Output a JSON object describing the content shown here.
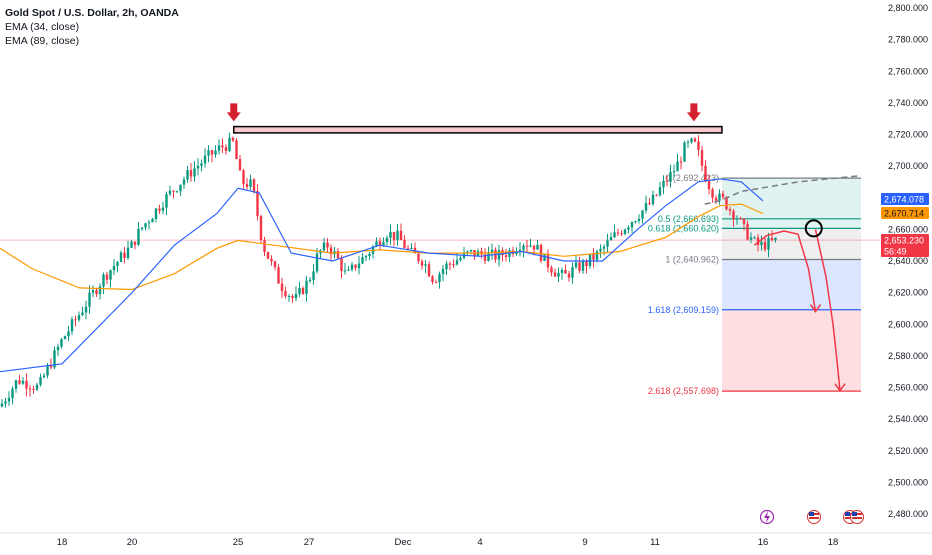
{
  "legend": {
    "symbol": "Gold Spot / U.S. Dollar, 2h, OANDA",
    "ema1": "EMA (34, close)",
    "ema2": "EMA (89, close)"
  },
  "chart_data": {
    "type": "candlestick",
    "y_axis": {
      "range": [
        2475,
        2805
      ],
      "ticks": [
        "2,800.000",
        "2,780.000",
        "2,760.000",
        "2,740.000",
        "2,720.000",
        "2,700.000",
        "2,680.000",
        "2,660.000",
        "2,640.000",
        "2,620.000",
        "2,600.000",
        "2,580.000",
        "2,560.000",
        "2,540.000",
        "2,520.000",
        "2,500.000",
        "2,480.000"
      ],
      "tick_values": [
        2800,
        2780,
        2760,
        2740,
        2720,
        2700,
        2680,
        2660,
        2640,
        2620,
        2600,
        2580,
        2560,
        2540,
        2520,
        2500,
        2480
      ]
    },
    "x_axis": {
      "ticks": [
        {
          "label": "18",
          "day": 18
        },
        {
          "label": "20",
          "day": 20
        },
        {
          "label": "25",
          "day": 25
        },
        {
          "label": "27",
          "day": 27
        },
        {
          "label": "Dec",
          "day": 31
        },
        {
          "label": "4",
          "day": 34
        },
        {
          "label": "9",
          "day": 39
        },
        {
          "label": "11",
          "day": 41
        },
        {
          "label": "16",
          "day": 46
        },
        {
          "label": "18",
          "day": 48
        }
      ]
    },
    "price_path": [
      [
        15.9,
        2548
      ],
      [
        16.5,
        2565
      ],
      [
        17.2,
        2560
      ],
      [
        17.6,
        2575
      ],
      [
        18.0,
        2590
      ],
      [
        18.6,
        2610
      ],
      [
        19.2,
        2630
      ],
      [
        19.8,
        2645
      ],
      [
        20.4,
        2660
      ],
      [
        21.0,
        2670
      ],
      [
        21.6,
        2680
      ],
      [
        22.3,
        2690
      ],
      [
        22.9,
        2698
      ],
      [
        23.5,
        2705
      ],
      [
        24.2,
        2712
      ],
      [
        24.8,
        2715
      ],
      [
        25.1,
        2690
      ],
      [
        25.4,
        2688
      ],
      [
        25.7,
        2650
      ],
      [
        26.2,
        2625
      ],
      [
        26.6,
        2615
      ],
      [
        27.0,
        2628
      ],
      [
        27.4,
        2645
      ],
      [
        27.8,
        2650
      ],
      [
        28.2,
        2642
      ],
      [
        28.6,
        2630
      ],
      [
        29.0,
        2638
      ],
      [
        29.4,
        2643
      ],
      [
        29.8,
        2650
      ],
      [
        30.3,
        2658
      ],
      [
        30.8,
        2655
      ],
      [
        31.3,
        2645
      ],
      [
        31.8,
        2640
      ],
      [
        32.2,
        2628
      ],
      [
        32.6,
        2636
      ],
      [
        33.0,
        2640
      ],
      [
        33.6,
        2645
      ],
      [
        34.2,
        2644
      ],
      [
        34.8,
        2643
      ],
      [
        35.4,
        2646
      ],
      [
        36.0,
        2652
      ],
      [
        36.6,
        2650
      ],
      [
        37.1,
        2640
      ],
      [
        37.6,
        2633
      ],
      [
        38.0,
        2630
      ],
      [
        38.5,
        2635
      ],
      [
        39.0,
        2638
      ],
      [
        39.4,
        2645
      ],
      [
        39.8,
        2655
      ],
      [
        40.3,
        2665
      ],
      [
        40.8,
        2675
      ],
      [
        41.2,
        2685
      ],
      [
        41.6,
        2692
      ],
      [
        42.0,
        2700
      ],
      [
        42.4,
        2712
      ],
      [
        42.8,
        2715
      ],
      [
        43.0,
        2708
      ],
      [
        43.3,
        2695
      ],
      [
        43.6,
        2685
      ],
      [
        43.9,
        2680
      ],
      [
        44.2,
        2678
      ],
      [
        44.5,
        2672
      ],
      [
        44.8,
        2668
      ],
      [
        45.1,
        2660
      ],
      [
        45.4,
        2655
      ],
      [
        45.7,
        2650
      ],
      [
        46.0,
        2650
      ],
      [
        46.4,
        2653
      ]
    ],
    "ema_34": [
      [
        15.9,
        2570
      ],
      [
        18.0,
        2575
      ],
      [
        20.0,
        2620
      ],
      [
        22.0,
        2650
      ],
      [
        24.0,
        2670
      ],
      [
        25.0,
        2686
      ],
      [
        25.6,
        2683
      ],
      [
        26.5,
        2645
      ],
      [
        28.0,
        2640
      ],
      [
        30.0,
        2650
      ],
      [
        32.0,
        2645
      ],
      [
        34.0,
        2643
      ],
      [
        36.0,
        2646
      ],
      [
        38.0,
        2640
      ],
      [
        39.5,
        2640
      ],
      [
        40.5,
        2660
      ],
      [
        41.5,
        2675
      ],
      [
        43.0,
        2690
      ],
      [
        44.0,
        2692
      ],
      [
        45.0,
        2690
      ],
      [
        46.0,
        2678
      ]
    ],
    "ema_89": [
      [
        15.9,
        2648
      ],
      [
        17.0,
        2635
      ],
      [
        18.5,
        2623
      ],
      [
        20.0,
        2622
      ],
      [
        22.0,
        2632
      ],
      [
        24.0,
        2648
      ],
      [
        25.0,
        2653
      ],
      [
        26.0,
        2650
      ],
      [
        28.0,
        2645
      ],
      [
        30.0,
        2647
      ],
      [
        32.0,
        2645
      ],
      [
        34.0,
        2645
      ],
      [
        36.0,
        2646
      ],
      [
        38.0,
        2643
      ],
      [
        40.0,
        2646
      ],
      [
        41.5,
        2655
      ],
      [
        43.0,
        2668
      ],
      [
        44.0,
        2675
      ],
      [
        45.0,
        2676
      ],
      [
        46.0,
        2670
      ]
    ],
    "resistance_zone": {
      "from_day": 24.8,
      "to_day": 44.1,
      "low": 2721,
      "high": 2725
    },
    "arrows_down": [
      {
        "day": 24.8,
        "price": 2727
      },
      {
        "day": 42.8,
        "price": 2727
      }
    ],
    "trend_dashed": [
      [
        43.3,
        2676
      ],
      [
        44.0,
        2678
      ],
      [
        45.0,
        2684
      ],
      [
        47.0,
        2690
      ],
      [
        48.8,
        2694
      ]
    ],
    "fib": {
      "from_day": 44.1,
      "to_day": 48.8,
      "levels": [
        {
          "ratio": 0,
          "price": 2692.423,
          "label": "0 (2,692.423)",
          "color": "#787b86"
        },
        {
          "ratio": 0.5,
          "price": 2666.693,
          "label": "0.5 (2,666.693)",
          "color": "#089981"
        },
        {
          "ratio": 0.618,
          "price": 2660.62,
          "label": "0.618 (2,660.620)",
          "color": "#089981"
        },
        {
          "ratio": 1,
          "price": 2640.962,
          "label": "1 (2,640.962)",
          "color": "#787b86"
        },
        {
          "ratio": 1.618,
          "price": 2609.159,
          "label": "1.618 (2,609.159)",
          "color": "#2962ff"
        },
        {
          "ratio": 2.618,
          "price": 2557.698,
          "label": "2.618 (2,557.698)",
          "color": "#f23645"
        }
      ]
    },
    "projection_path": [
      [
        45.6,
        2650
      ],
      [
        46.1,
        2656
      ],
      [
        46.6,
        2659
      ],
      [
        47.0,
        2657
      ],
      [
        47.3,
        2635
      ],
      [
        47.5,
        2608
      ]
    ],
    "projection_path_2": [
      [
        47.5,
        2660
      ],
      [
        47.8,
        2630
      ],
      [
        48.0,
        2600
      ],
      [
        48.1,
        2580
      ],
      [
        48.2,
        2558
      ]
    ],
    "circle": {
      "day": 47.45,
      "price": 2660.62
    },
    "badges": [
      {
        "label": "2,674.078",
        "color": "#2962ff",
        "text_color": "#ffffff",
        "price": 2674.078
      },
      {
        "label": "2,670.714",
        "color": "#ff9800",
        "text_color": "#131722",
        "price": 2670.714
      },
      {
        "label": "2,653.230",
        "color": "#f23645",
        "text_color": "#ffffff",
        "price": 2653.23
      },
      {
        "label": "56:49",
        "color": "#f23645",
        "text_color": "#ffffff",
        "price": 2653.23
      }
    ],
    "last_price": 2653.23
  }
}
